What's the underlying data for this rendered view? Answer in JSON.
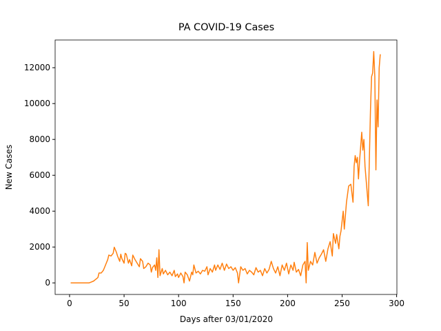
{
  "chart_data": {
    "type": "line",
    "title": "PA COVID-19 Cases",
    "x_label": "Days after 03/01/2020",
    "y_label": "New Cases",
    "xlim": [
      -13.25,
      300.25
    ],
    "ylim": [
      -645,
      13545
    ],
    "xticks": [
      0,
      50,
      100,
      150,
      200,
      250,
      300
    ],
    "yticks": [
      0,
      2000,
      4000,
      6000,
      8000,
      10000,
      12000
    ],
    "grid": false,
    "x": [
      1,
      18,
      20,
      22,
      24,
      26,
      27,
      29,
      31,
      33,
      35,
      36,
      38,
      40,
      41,
      43,
      44,
      46,
      47,
      48,
      50,
      51,
      52,
      54,
      55,
      57,
      58,
      60,
      62,
      64,
      65,
      67,
      68,
      70,
      72,
      74,
      75,
      76,
      78,
      79,
      80,
      81,
      82,
      83,
      85,
      86,
      88,
      90,
      92,
      94,
      96,
      97,
      99,
      100,
      102,
      104,
      105,
      106,
      108,
      110,
      112,
      113,
      114,
      116,
      118,
      120,
      122,
      124,
      126,
      127,
      129,
      131,
      133,
      134,
      136,
      138,
      140,
      142,
      144,
      146,
      148,
      150,
      152,
      154,
      155,
      157,
      159,
      161,
      163,
      165,
      167,
      169,
      171,
      173,
      175,
      177,
      179,
      181,
      183,
      185,
      187,
      189,
      191,
      193,
      195,
      197,
      199,
      201,
      203,
      205,
      206,
      208,
      210,
      212,
      214,
      216,
      217,
      218,
      219,
      221,
      223,
      225,
      227,
      229,
      231,
      233,
      235,
      237,
      239,
      241,
      242,
      244,
      245,
      247,
      248,
      249,
      251,
      252,
      254,
      256,
      258,
      260,
      261,
      262,
      263,
      264,
      265,
      266,
      268,
      269,
      270,
      271,
      274,
      276,
      277,
      278,
      279,
      280,
      281,
      282,
      283,
      284,
      285
    ],
    "series": [
      {
        "name": "New Cases",
        "color": "#ff7f0e",
        "values": [
          0,
          0,
          50,
          100,
          200,
          300,
          550,
          550,
          700,
          1000,
          1300,
          1550,
          1500,
          1650,
          1990,
          1700,
          1500,
          1200,
          1600,
          1350,
          1100,
          1650,
          1600,
          1100,
          1300,
          950,
          1550,
          1300,
          1100,
          900,
          1350,
          1200,
          800,
          900,
          1100,
          1000,
          600,
          850,
          1000,
          700,
          1400,
          300,
          1850,
          400,
          800,
          500,
          700,
          450,
          600,
          400,
          700,
          350,
          500,
          300,
          550,
          350,
          0,
          600,
          450,
          100,
          600,
          450,
          1000,
          550,
          650,
          500,
          700,
          650,
          900,
          450,
          800,
          600,
          1000,
          700,
          1000,
          750,
          1100,
          700,
          1050,
          800,
          900,
          700,
          850,
          550,
          0,
          900,
          700,
          800,
          500,
          700,
          600,
          450,
          850,
          600,
          700,
          400,
          800,
          550,
          750,
          1200,
          800,
          550,
          900,
          400,
          1000,
          700,
          1100,
          500,
          1000,
          700,
          1150,
          600,
          750,
          400,
          1000,
          1200,
          0,
          2250,
          700,
          1200,
          1000,
          1700,
          1100,
          1400,
          1600,
          1850,
          1200,
          1900,
          2300,
          1500,
          2750,
          2200,
          2700,
          1900,
          2600,
          2900,
          4000,
          3000,
          4500,
          5400,
          5500,
          4500,
          6500,
          7100,
          6700,
          7000,
          5800,
          6800,
          8400,
          7400,
          8000,
          6500,
          4300,
          9600,
          11500,
          11700,
          12900,
          11500,
          6300,
          10200,
          8700,
          12000,
          12750
        ]
      }
    ]
  }
}
